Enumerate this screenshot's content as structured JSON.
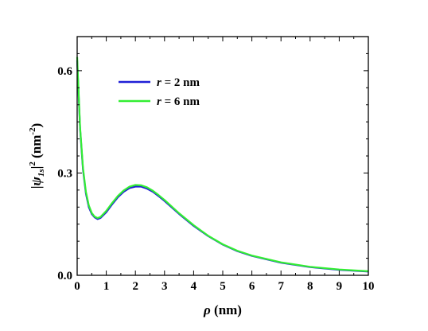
{
  "chart_data": {
    "type": "line",
    "xlabel": {
      "symbol": "ρ",
      "unit": " (nm)"
    },
    "ylabel": {
      "bar_left": "|",
      "psi": "ψ",
      "sub": "1s",
      "bar_right": "|",
      "sup": "2",
      "unit": " (nm",
      "unit_sup": "-2",
      "unit_close": ")"
    },
    "xlim": [
      0,
      10
    ],
    "ylim": [
      0,
      0.7
    ],
    "x_ticks": [
      "0",
      "1",
      "2",
      "3",
      "4",
      "5",
      "6",
      "7",
      "8",
      "9",
      "10"
    ],
    "y_ticks": [
      "0.0",
      "0.3",
      "0.6"
    ],
    "y_tick_values": [
      0,
      0.3,
      0.6
    ],
    "legend": {
      "placement": "top-center",
      "entries": [
        {
          "italic": "r",
          "text": " = 2 nm"
        },
        {
          "italic": "r",
          "text": " = 6 nm"
        }
      ]
    },
    "series": [
      {
        "name": "r = 2 nm",
        "color": "#1f1fd6",
        "x": [
          0,
          0.1,
          0.2,
          0.3,
          0.4,
          0.5,
          0.6,
          0.7,
          0.8,
          1.0,
          1.2,
          1.4,
          1.6,
          1.8,
          2.0,
          2.2,
          2.4,
          2.6,
          2.8,
          3.0,
          3.5,
          4.0,
          4.5,
          5.0,
          5.5,
          6.0,
          7.0,
          8.0,
          9.0,
          10.0
        ],
        "y": [
          0.63,
          0.43,
          0.31,
          0.24,
          0.2,
          0.18,
          0.17,
          0.165,
          0.168,
          0.185,
          0.208,
          0.229,
          0.245,
          0.256,
          0.26,
          0.26,
          0.254,
          0.245,
          0.232,
          0.218,
          0.18,
          0.145,
          0.115,
          0.09,
          0.071,
          0.057,
          0.037,
          0.024,
          0.016,
          0.011
        ]
      },
      {
        "name": "r = 6 nm",
        "color": "#33ee33",
        "x": [
          0,
          0.1,
          0.2,
          0.3,
          0.4,
          0.5,
          0.6,
          0.7,
          0.8,
          1.0,
          1.2,
          1.4,
          1.6,
          1.8,
          2.0,
          2.2,
          2.4,
          2.6,
          2.8,
          3.0,
          3.5,
          4.0,
          4.5,
          5.0,
          5.5,
          6.0,
          7.0,
          8.0,
          9.0,
          10.0
        ],
        "y": [
          0.64,
          0.435,
          0.315,
          0.245,
          0.205,
          0.183,
          0.172,
          0.168,
          0.171,
          0.189,
          0.212,
          0.233,
          0.249,
          0.26,
          0.265,
          0.264,
          0.258,
          0.248,
          0.235,
          0.221,
          0.182,
          0.147,
          0.116,
          0.091,
          0.072,
          0.058,
          0.038,
          0.025,
          0.017,
          0.012
        ]
      }
    ]
  }
}
